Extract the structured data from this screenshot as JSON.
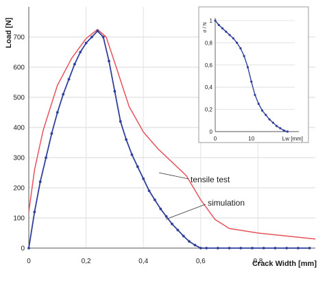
{
  "chart_data": [
    {
      "type": "line",
      "xlabel": "Crack Width [mm]",
      "ylabel": "Load [N]",
      "xlim": [
        0,
        1.0
      ],
      "ylim": [
        0,
        800
      ],
      "x_ticks": [
        "0",
        "0,2",
        "0,4",
        "0,6",
        "0,8"
      ],
      "y_ticks": [
        "0",
        "100",
        "200",
        "300",
        "400",
        "500",
        "600",
        "700"
      ],
      "grid": true,
      "annotations": [
        "tensile test",
        "simulation"
      ],
      "series": [
        {
          "name": "tensile test",
          "color": "#e8505a",
          "x": [
            0,
            0.02,
            0.05,
            0.08,
            0.1,
            0.15,
            0.2,
            0.24,
            0.27,
            0.3,
            0.35,
            0.4,
            0.45,
            0.5,
            0.55,
            0.6,
            0.65,
            0.7,
            0.8,
            0.9,
            1.0
          ],
          "y": [
            120,
            260,
            390,
            480,
            540,
            630,
            695,
            725,
            700,
            615,
            470,
            385,
            330,
            285,
            240,
            160,
            95,
            65,
            50,
            40,
            30
          ]
        },
        {
          "name": "simulation",
          "color": "#2f3f9a",
          "x": [
            0,
            0.02,
            0.04,
            0.06,
            0.08,
            0.1,
            0.12,
            0.14,
            0.16,
            0.18,
            0.2,
            0.22,
            0.24,
            0.26,
            0.28,
            0.3,
            0.32,
            0.34,
            0.36,
            0.38,
            0.4,
            0.42,
            0.44,
            0.46,
            0.48,
            0.5,
            0.52,
            0.54,
            0.56,
            0.58,
            0.6,
            0.62,
            0.66,
            0.7,
            0.74,
            0.78,
            0.82,
            0.86,
            0.9,
            0.94,
            0.98
          ],
          "y": [
            0,
            120,
            220,
            300,
            380,
            450,
            510,
            560,
            610,
            650,
            680,
            700,
            720,
            700,
            620,
            520,
            420,
            360,
            310,
            270,
            230,
            190,
            160,
            130,
            105,
            80,
            60,
            40,
            22,
            10,
            0,
            0,
            0,
            0,
            0,
            0,
            0,
            0,
            0,
            0,
            0
          ]
        }
      ]
    },
    {
      "type": "line",
      "xlabel": "Lw [mm]",
      "ylabel": "σ / N",
      "xlim": [
        0,
        22
      ],
      "ylim": [
        0,
        1
      ],
      "x_ticks": [
        "0",
        "10",
        "Lw [mm]"
      ],
      "y_ticks": [
        "0",
        "0,2",
        "0,4",
        "0,6",
        "0,8",
        "1"
      ],
      "series": [
        {
          "color": "#2f3f9a",
          "x": [
            0,
            1,
            2,
            3,
            4,
            5,
            6,
            7,
            8,
            9,
            10,
            11,
            12,
            13,
            14,
            15,
            16,
            17,
            18,
            19,
            20
          ],
          "y": [
            1.0,
            0.96,
            0.93,
            0.9,
            0.87,
            0.84,
            0.8,
            0.75,
            0.68,
            0.58,
            0.45,
            0.33,
            0.25,
            0.19,
            0.15,
            0.11,
            0.08,
            0.05,
            0.03,
            0.01,
            0.0
          ]
        }
      ]
    }
  ]
}
